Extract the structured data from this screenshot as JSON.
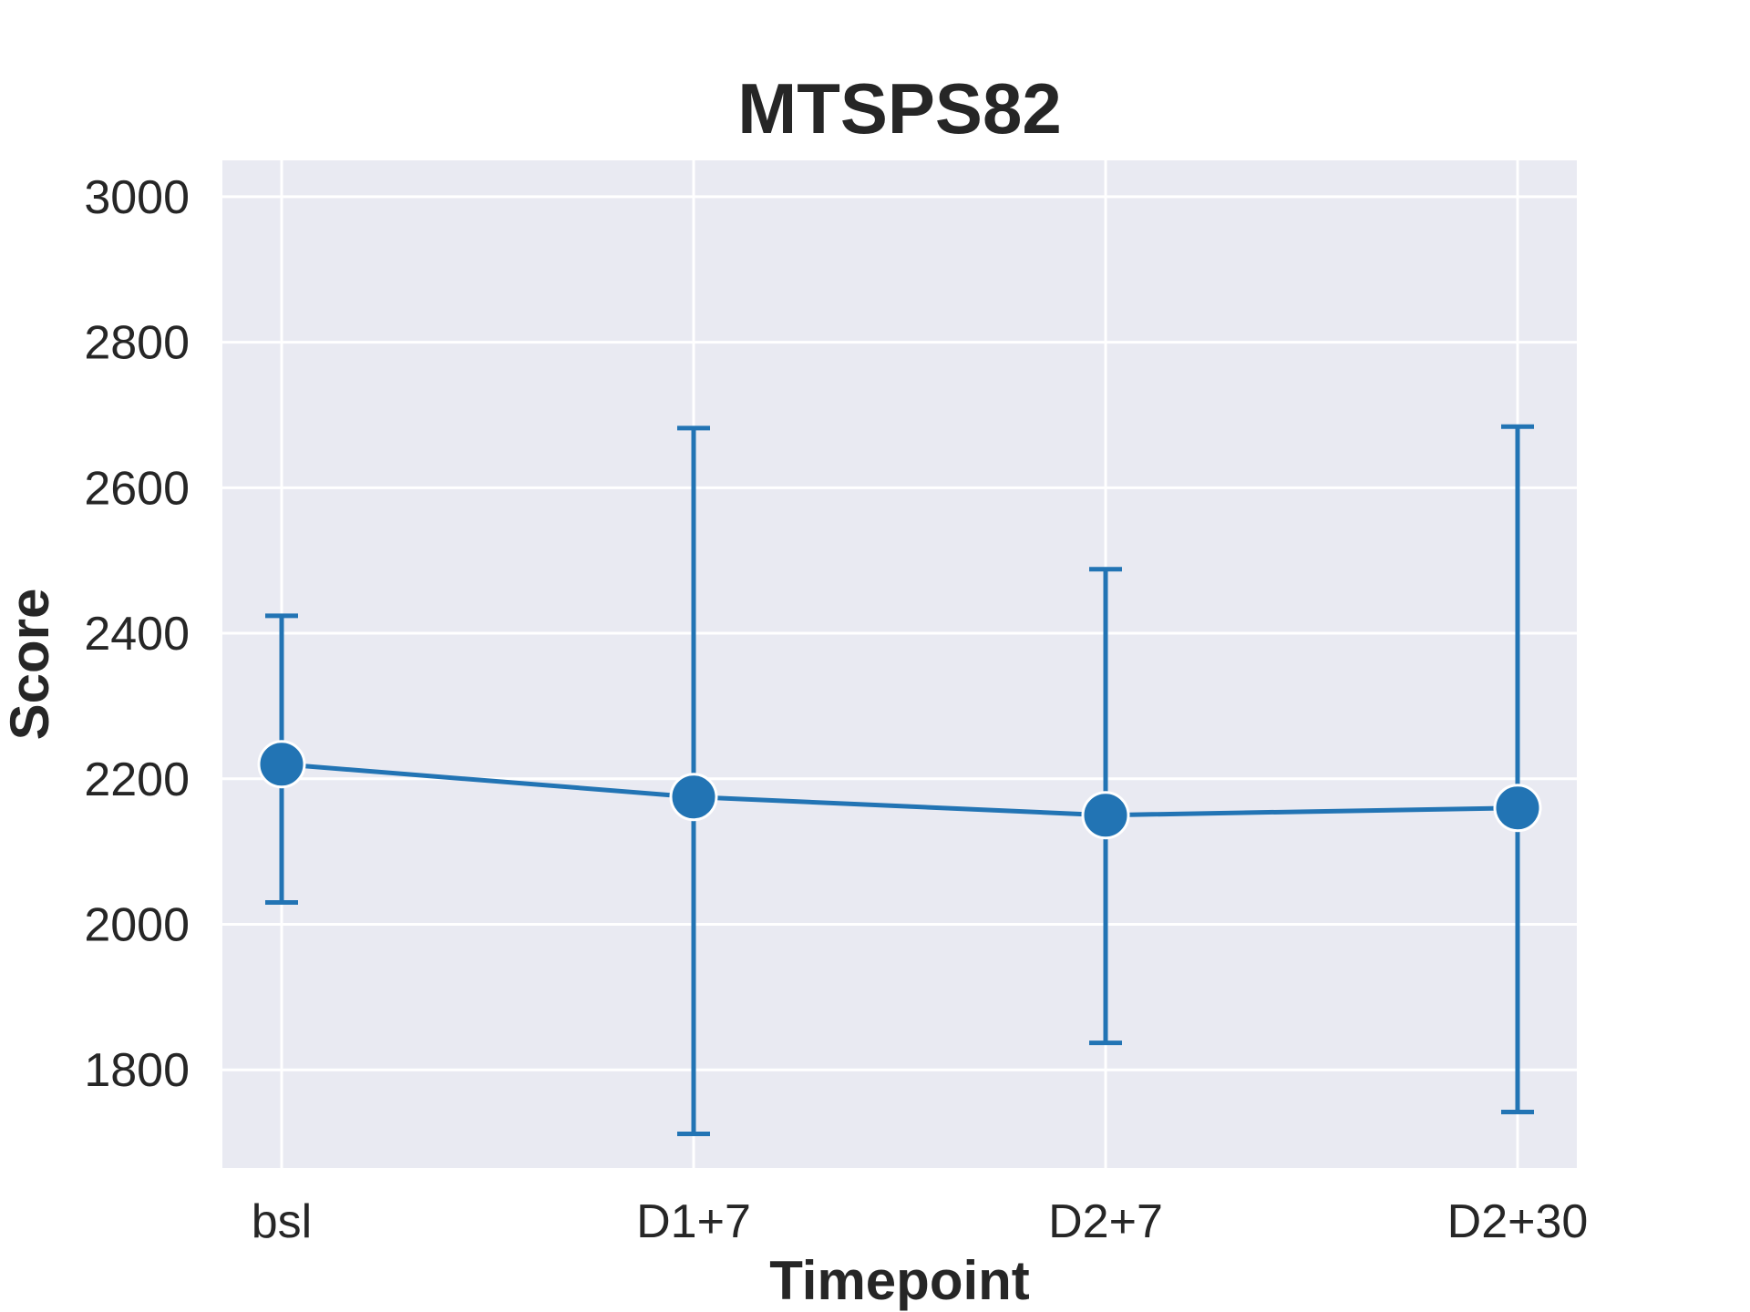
{
  "chart_data": {
    "type": "line",
    "title": "MTSPS82",
    "xlabel": "Timepoint",
    "ylabel": "Score",
    "categories": [
      "bsl",
      "D1+7",
      "D2+7",
      "D2+30"
    ],
    "values": [
      2220,
      2175,
      2150,
      2160
    ],
    "error_low": [
      2030,
      1712,
      1837,
      1742
    ],
    "error_high": [
      2424,
      2682,
      2488,
      2684
    ],
    "ylim": [
      1665,
      3050
    ],
    "yticks": [
      1800,
      2000,
      2200,
      2400,
      2600,
      2800,
      3000
    ],
    "grid": true,
    "legend": "none",
    "colors": {
      "series": "#2274b4",
      "plot_background": "#e9eaf2",
      "grid": "#ffffff",
      "text": "#262626"
    }
  }
}
